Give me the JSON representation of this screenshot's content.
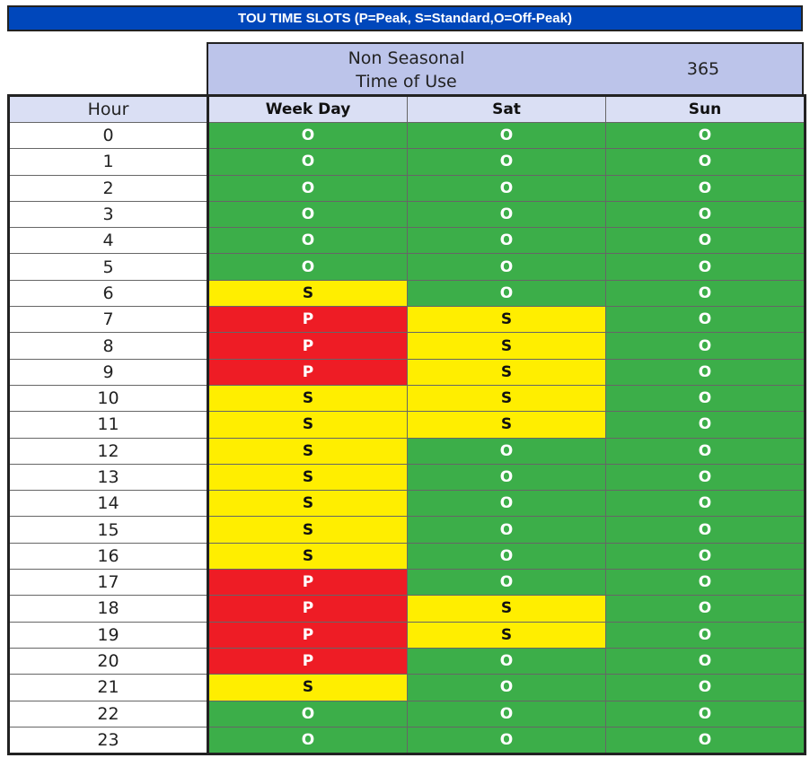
{
  "title": "TOU TIME SLOTS (P=Peak, S=Standard,O=Off-Peak)",
  "header": {
    "season_line1": "Non Seasonal",
    "season_line2": "Time of Use",
    "days": "365"
  },
  "columns": {
    "hour": "Hour",
    "weekday": "Week Day",
    "sat": "Sat",
    "sun": "Sun"
  },
  "colors": {
    "O": "#3cae49",
    "S": "#ffee00",
    "P": "#ee1c25"
  },
  "rows": [
    {
      "hour": "0",
      "weekday": "O",
      "sat": "O",
      "sun": "O"
    },
    {
      "hour": "1",
      "weekday": "O",
      "sat": "O",
      "sun": "O"
    },
    {
      "hour": "2",
      "weekday": "O",
      "sat": "O",
      "sun": "O"
    },
    {
      "hour": "3",
      "weekday": "O",
      "sat": "O",
      "sun": "O"
    },
    {
      "hour": "4",
      "weekday": "O",
      "sat": "O",
      "sun": "O"
    },
    {
      "hour": "5",
      "weekday": "O",
      "sat": "O",
      "sun": "O"
    },
    {
      "hour": "6",
      "weekday": "S",
      "sat": "O",
      "sun": "O"
    },
    {
      "hour": "7",
      "weekday": "P",
      "sat": "S",
      "sun": "O"
    },
    {
      "hour": "8",
      "weekday": "P",
      "sat": "S",
      "sun": "O"
    },
    {
      "hour": "9",
      "weekday": "P",
      "sat": "S",
      "sun": "O"
    },
    {
      "hour": "10",
      "weekday": "S",
      "sat": "S",
      "sun": "O"
    },
    {
      "hour": "11",
      "weekday": "S",
      "sat": "S",
      "sun": "O"
    },
    {
      "hour": "12",
      "weekday": "S",
      "sat": "O",
      "sun": "O"
    },
    {
      "hour": "13",
      "weekday": "S",
      "sat": "O",
      "sun": "O"
    },
    {
      "hour": "14",
      "weekday": "S",
      "sat": "O",
      "sun": "O"
    },
    {
      "hour": "15",
      "weekday": "S",
      "sat": "O",
      "sun": "O"
    },
    {
      "hour": "16",
      "weekday": "S",
      "sat": "O",
      "sun": "O"
    },
    {
      "hour": "17",
      "weekday": "P",
      "sat": "O",
      "sun": "O"
    },
    {
      "hour": "18",
      "weekday": "P",
      "sat": "S",
      "sun": "O"
    },
    {
      "hour": "19",
      "weekday": "P",
      "sat": "S",
      "sun": "O"
    },
    {
      "hour": "20",
      "weekday": "P",
      "sat": "O",
      "sun": "O"
    },
    {
      "hour": "21",
      "weekday": "S",
      "sat": "O",
      "sun": "O"
    },
    {
      "hour": "22",
      "weekday": "O",
      "sat": "O",
      "sun": "O"
    },
    {
      "hour": "23",
      "weekday": "O",
      "sat": "O",
      "sun": "O"
    }
  ]
}
